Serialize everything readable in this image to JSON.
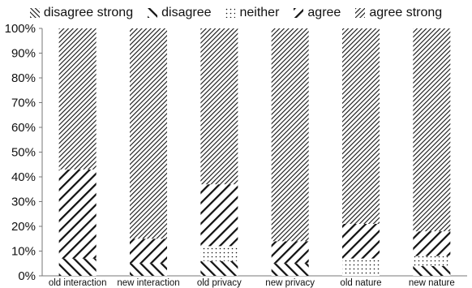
{
  "chart_data": {
    "type": "bar",
    "stacked": true,
    "percent": true,
    "categories": [
      "old interaction",
      "new interaction",
      "old privacy",
      "new privacy",
      "old nature",
      "new nature"
    ],
    "series": [
      {
        "name": "disagree strong",
        "pattern": "backslash-dense",
        "values": [
          0,
          0,
          0,
          0,
          0,
          0
        ]
      },
      {
        "name": "disagree",
        "pattern": "backslash",
        "values": [
          7,
          5,
          6,
          5,
          0,
          4
        ]
      },
      {
        "name": "neither",
        "pattern": "dots",
        "values": [
          0,
          0,
          6,
          0,
          7,
          4
        ]
      },
      {
        "name": "agree",
        "pattern": "slash",
        "values": [
          36,
          10,
          25,
          9,
          14,
          10
        ]
      },
      {
        "name": "agree strong",
        "pattern": "slash-dense",
        "values": [
          57,
          85,
          63,
          86,
          79,
          82
        ]
      }
    ],
    "yticks": [
      "0%",
      "10%",
      "20%",
      "30%",
      "40%",
      "50%",
      "60%",
      "70%",
      "80%",
      "90%",
      "100%"
    ],
    "ylim": [
      0,
      100
    ],
    "grid": false,
    "legend_position": "top"
  }
}
